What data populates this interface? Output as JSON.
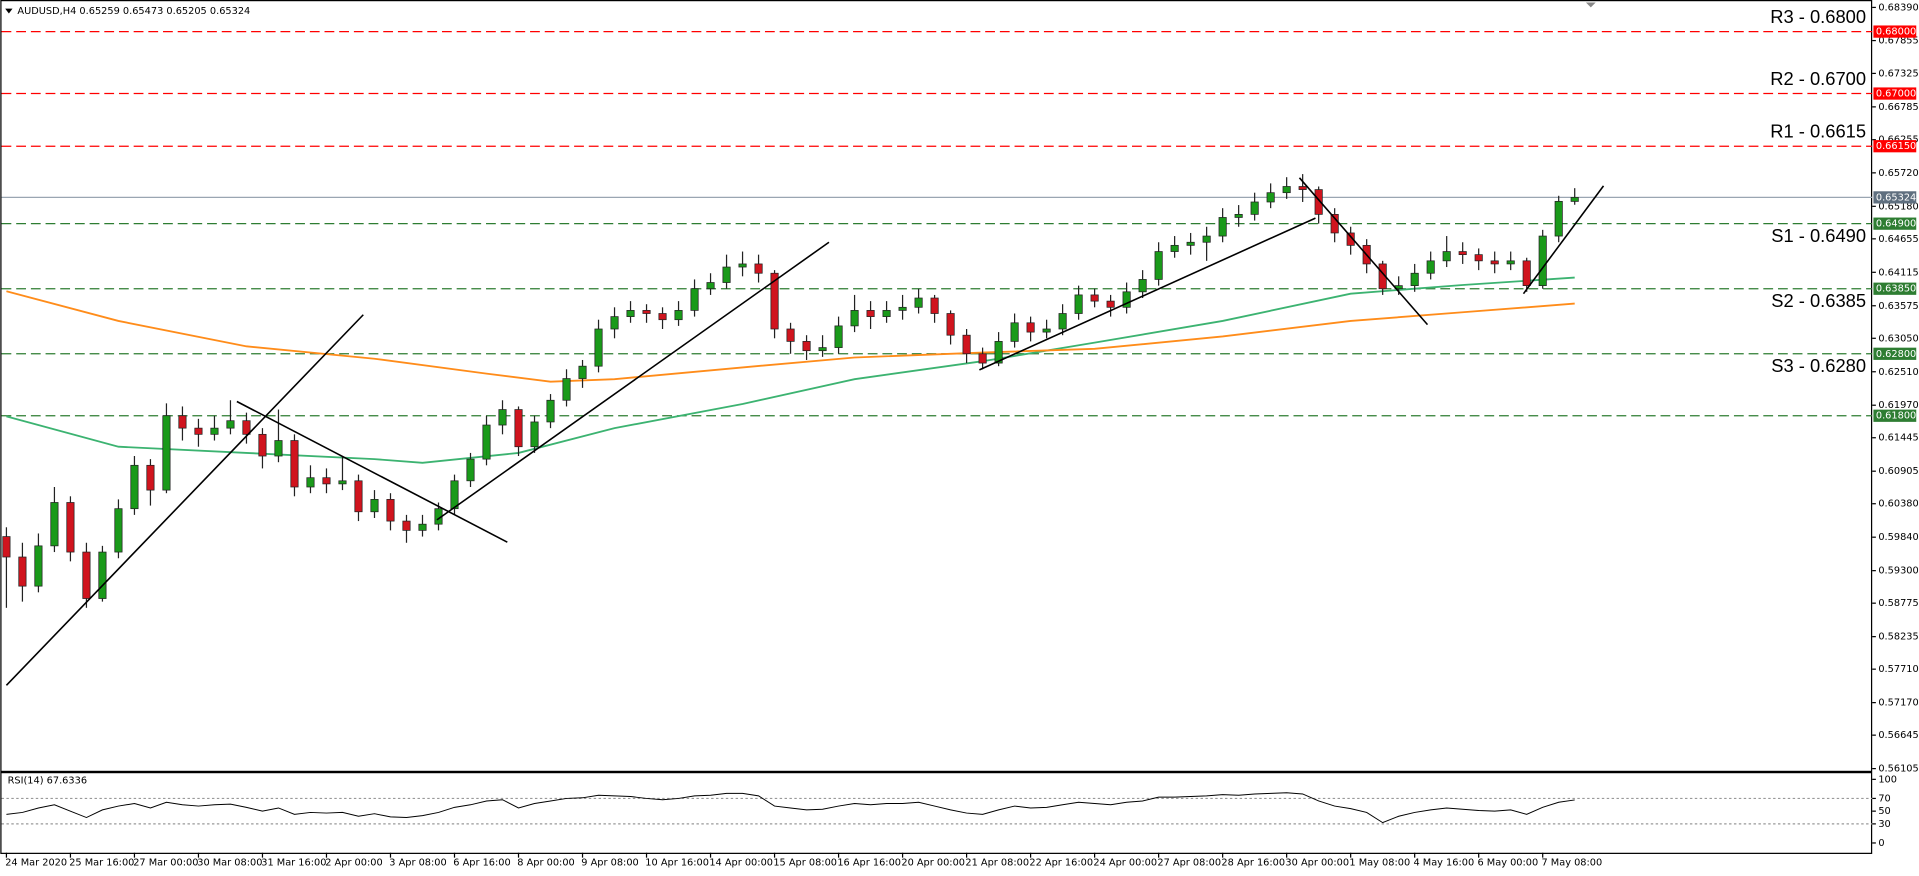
{
  "chart_data": {
    "type": "candlestick",
    "title": "AUDUSD,H4  0.65259 0.65473 0.65205 0.65324",
    "up_color": "#1a9a1a",
    "down_color": "#d0141e",
    "candles": [
      [
        0.5985,
        0.6,
        0.587,
        0.5952
      ],
      [
        0.5952,
        0.5975,
        0.588,
        0.5905
      ],
      [
        0.5905,
        0.599,
        0.5895,
        0.597
      ],
      [
        0.597,
        0.6065,
        0.596,
        0.604
      ],
      [
        0.604,
        0.605,
        0.5945,
        0.596
      ],
      [
        0.596,
        0.5975,
        0.587,
        0.5885
      ],
      [
        0.5885,
        0.597,
        0.588,
        0.596
      ],
      [
        0.596,
        0.6045,
        0.595,
        0.603
      ],
      [
        0.603,
        0.6115,
        0.602,
        0.61
      ],
      [
        0.61,
        0.611,
        0.6035,
        0.606
      ],
      [
        0.606,
        0.62,
        0.6055,
        0.618
      ],
      [
        0.618,
        0.6195,
        0.614,
        0.616
      ],
      [
        0.616,
        0.6175,
        0.613,
        0.615
      ],
      [
        0.615,
        0.618,
        0.614,
        0.616
      ],
      [
        0.616,
        0.6205,
        0.615,
        0.6172
      ],
      [
        0.6172,
        0.6185,
        0.6135,
        0.615
      ],
      [
        0.615,
        0.616,
        0.6095,
        0.6115
      ],
      [
        0.6115,
        0.619,
        0.6105,
        0.614
      ],
      [
        0.614,
        0.615,
        0.605,
        0.6065
      ],
      [
        0.6065,
        0.61,
        0.6055,
        0.608
      ],
      [
        0.608,
        0.6095,
        0.6055,
        0.607
      ],
      [
        0.607,
        0.6115,
        0.606,
        0.6075
      ],
      [
        0.6075,
        0.6085,
        0.601,
        0.6025
      ],
      [
        0.6025,
        0.606,
        0.6015,
        0.6045
      ],
      [
        0.6045,
        0.6055,
        0.5995,
        0.601
      ],
      [
        0.601,
        0.602,
        0.5975,
        0.5995
      ],
      [
        0.5995,
        0.602,
        0.5985,
        0.6005
      ],
      [
        0.6005,
        0.604,
        0.5995,
        0.603
      ],
      [
        0.603,
        0.6085,
        0.602,
        0.6075
      ],
      [
        0.6075,
        0.612,
        0.6065,
        0.611
      ],
      [
        0.611,
        0.618,
        0.61,
        0.6165
      ],
      [
        0.6165,
        0.6205,
        0.615,
        0.619
      ],
      [
        0.619,
        0.6195,
        0.6115,
        0.613
      ],
      [
        0.613,
        0.618,
        0.612,
        0.617
      ],
      [
        0.617,
        0.6215,
        0.616,
        0.6205
      ],
      [
        0.6205,
        0.6255,
        0.6195,
        0.624
      ],
      [
        0.624,
        0.627,
        0.6225,
        0.626
      ],
      [
        0.626,
        0.6335,
        0.625,
        0.632
      ],
      [
        0.632,
        0.6355,
        0.6305,
        0.634
      ],
      [
        0.634,
        0.6365,
        0.633,
        0.635
      ],
      [
        0.635,
        0.636,
        0.633,
        0.6345
      ],
      [
        0.6345,
        0.6355,
        0.632,
        0.6335
      ],
      [
        0.6335,
        0.6365,
        0.6325,
        0.635
      ],
      [
        0.635,
        0.64,
        0.634,
        0.6385
      ],
      [
        0.6385,
        0.641,
        0.6375,
        0.6395
      ],
      [
        0.6395,
        0.644,
        0.6385,
        0.642
      ],
      [
        0.642,
        0.6445,
        0.6405,
        0.6425
      ],
      [
        0.6425,
        0.644,
        0.6395,
        0.641
      ],
      [
        0.641,
        0.6415,
        0.6305,
        0.632
      ],
      [
        0.632,
        0.633,
        0.628,
        0.63
      ],
      [
        0.63,
        0.631,
        0.627,
        0.6285
      ],
      [
        0.6285,
        0.631,
        0.6275,
        0.629
      ],
      [
        0.629,
        0.634,
        0.628,
        0.6325
      ],
      [
        0.6325,
        0.6375,
        0.6315,
        0.635
      ],
      [
        0.635,
        0.6365,
        0.632,
        0.634
      ],
      [
        0.634,
        0.6365,
        0.633,
        0.635
      ],
      [
        0.635,
        0.6375,
        0.6335,
        0.6355
      ],
      [
        0.6355,
        0.6385,
        0.6345,
        0.637
      ],
      [
        0.637,
        0.6375,
        0.633,
        0.6345
      ],
      [
        0.6345,
        0.635,
        0.6295,
        0.631
      ],
      [
        0.631,
        0.632,
        0.6265,
        0.628
      ],
      [
        0.628,
        0.629,
        0.6255,
        0.6265
      ],
      [
        0.6265,
        0.6315,
        0.626,
        0.63
      ],
      [
        0.63,
        0.6345,
        0.629,
        0.633
      ],
      [
        0.633,
        0.634,
        0.63,
        0.6315
      ],
      [
        0.6315,
        0.6335,
        0.6305,
        0.632
      ],
      [
        0.632,
        0.636,
        0.631,
        0.6345
      ],
      [
        0.6345,
        0.639,
        0.6335,
        0.6375
      ],
      [
        0.6375,
        0.6385,
        0.6355,
        0.6365
      ],
      [
        0.6365,
        0.6375,
        0.634,
        0.6355
      ],
      [
        0.6355,
        0.6395,
        0.6345,
        0.638
      ],
      [
        0.638,
        0.6415,
        0.637,
        0.64
      ],
      [
        0.64,
        0.646,
        0.639,
        0.6445
      ],
      [
        0.6445,
        0.647,
        0.6435,
        0.6455
      ],
      [
        0.6455,
        0.6475,
        0.644,
        0.646
      ],
      [
        0.646,
        0.6485,
        0.643,
        0.647
      ],
      [
        0.647,
        0.6515,
        0.646,
        0.65
      ],
      [
        0.65,
        0.652,
        0.6485,
        0.6505
      ],
      [
        0.6505,
        0.654,
        0.6495,
        0.6525
      ],
      [
        0.6525,
        0.6555,
        0.6515,
        0.654
      ],
      [
        0.654,
        0.6565,
        0.653,
        0.655
      ],
      [
        0.655,
        0.657,
        0.6525,
        0.6545
      ],
      [
        0.6545,
        0.655,
        0.649,
        0.6505
      ],
      [
        0.6505,
        0.6515,
        0.646,
        0.6475
      ],
      [
        0.6475,
        0.6485,
        0.644,
        0.6455
      ],
      [
        0.6455,
        0.6465,
        0.641,
        0.6425
      ],
      [
        0.6425,
        0.643,
        0.6375,
        0.6385
      ],
      [
        0.6385,
        0.6405,
        0.6375,
        0.639
      ],
      [
        0.639,
        0.6425,
        0.638,
        0.641
      ],
      [
        0.641,
        0.6445,
        0.64,
        0.643
      ],
      [
        0.643,
        0.647,
        0.642,
        0.6445
      ],
      [
        0.6445,
        0.646,
        0.6425,
        0.644
      ],
      [
        0.644,
        0.645,
        0.6415,
        0.643
      ],
      [
        0.643,
        0.6445,
        0.641,
        0.6425
      ],
      [
        0.6425,
        0.6445,
        0.6415,
        0.643
      ],
      [
        0.643,
        0.6435,
        0.638,
        0.639
      ],
      [
        0.639,
        0.648,
        0.6385,
        0.647
      ],
      [
        0.647,
        0.6535,
        0.646,
        0.6526
      ],
      [
        0.65259,
        0.65473,
        0.65205,
        0.65324
      ]
    ],
    "ylim": [
      0.5607,
      0.6849
    ],
    "yticks": [
      {
        "value": 0.6839,
        "label": "0.68390"
      },
      {
        "value": 0.67855,
        "label": "0.67855"
      },
      {
        "value": 0.67325,
        "label": "0.67325"
      },
      {
        "value": 0.66785,
        "label": "0.66785"
      },
      {
        "value": 0.66255,
        "label": "0.66255"
      },
      {
        "value": 0.6572,
        "label": "0.65720"
      },
      {
        "value": 0.6518,
        "label": "0.65180"
      },
      {
        "value": 0.64655,
        "label": "0.64655"
      },
      {
        "value": 0.64115,
        "label": "0.64115"
      },
      {
        "value": 0.63575,
        "label": "0.63575"
      },
      {
        "value": 0.6305,
        "label": "0.63050"
      },
      {
        "value": 0.6251,
        "label": "0.62510"
      },
      {
        "value": 0.6197,
        "label": "0.61970"
      },
      {
        "value": 0.61445,
        "label": "0.61445"
      },
      {
        "value": 0.60905,
        "label": "0.60905"
      },
      {
        "value": 0.6038,
        "label": "0.60380"
      },
      {
        "value": 0.5984,
        "label": "0.59840"
      },
      {
        "value": 0.593,
        "label": "0.59300"
      },
      {
        "value": 0.58775,
        "label": "0.58775"
      },
      {
        "value": 0.58235,
        "label": "0.58235"
      },
      {
        "value": 0.5771,
        "label": "0.57710"
      },
      {
        "value": 0.5717,
        "label": "0.57170"
      },
      {
        "value": 0.56645,
        "label": "0.56645"
      },
      {
        "value": 0.56105,
        "label": "0.56105"
      }
    ],
    "xticks": [
      {
        "value": 0,
        "label": "24 Mar 2020"
      },
      {
        "value": 4,
        "label": "25 Mar 16:00"
      },
      {
        "value": 8,
        "label": "27 Mar 00:00"
      },
      {
        "value": 12,
        "label": "30 Mar 08:00"
      },
      {
        "value": 16,
        "label": "31 Mar 16:00"
      },
      {
        "value": 20,
        "label": "2 Apr 00:00"
      },
      {
        "value": 24,
        "label": "3 Apr 08:00"
      },
      {
        "value": 28,
        "label": "6 Apr 16:00"
      },
      {
        "value": 32,
        "label": "8 Apr 00:00"
      },
      {
        "value": 36,
        "label": "9 Apr 08:00"
      },
      {
        "value": 40,
        "label": "10 Apr 16:00"
      },
      {
        "value": 44,
        "label": "14 Apr 00:00"
      },
      {
        "value": 48,
        "label": "15 Apr 08:00"
      },
      {
        "value": 52,
        "label": "16 Apr 16:00"
      },
      {
        "value": 56,
        "label": "20 Apr 00:00"
      },
      {
        "value": 60,
        "label": "21 Apr 08:00"
      },
      {
        "value": 64,
        "label": "22 Apr 16:00"
      },
      {
        "value": 68,
        "label": "24 Apr 00:00"
      },
      {
        "value": 72,
        "label": "27 Apr 08:00"
      },
      {
        "value": 76,
        "label": "28 Apr 16:00"
      },
      {
        "value": 80,
        "label": "30 Apr 00:00"
      },
      {
        "value": 84,
        "label": "1 May 08:00"
      },
      {
        "value": 88,
        "label": "4 May 16:00"
      },
      {
        "value": 92,
        "label": "6 May 00:00"
      },
      {
        "value": 96,
        "label": "7 May 08:00"
      }
    ],
    "moving_averages": [
      {
        "color": "#3cb371",
        "x": [
          0,
          7,
          15,
          23,
          26,
          32,
          38,
          46,
          53,
          61,
          68,
          76,
          84,
          91,
          98
        ],
        "values": [
          0.6179,
          0.613,
          0.612,
          0.611,
          0.6104,
          0.612,
          0.616,
          0.6199,
          0.6239,
          0.6268,
          0.6298,
          0.6333,
          0.6377,
          0.6391,
          0.6403
        ]
      },
      {
        "color": "#ff8c1a",
        "x": [
          0,
          7,
          15,
          23,
          30,
          34,
          38,
          46,
          53,
          61,
          68,
          76,
          84,
          91,
          98
        ],
        "values": [
          0.6381,
          0.6333,
          0.6292,
          0.6272,
          0.6248,
          0.6235,
          0.6239,
          0.6258,
          0.6274,
          0.6282,
          0.6288,
          0.6308,
          0.6333,
          0.6347,
          0.6361
        ]
      }
    ],
    "trendlines": [
      {
        "x": [
          0,
          22.3
        ],
        "values": [
          0.5745,
          0.6343
        ]
      },
      {
        "x": [
          14.4,
          31.3
        ],
        "values": [
          0.6203,
          0.5976
        ]
      },
      {
        "x": [
          26.9,
          51.4
        ],
        "values": [
          0.6012,
          0.646
        ]
      },
      {
        "x": [
          60.8,
          81.8
        ],
        "values": [
          0.6254,
          0.6499
        ]
      },
      {
        "x": [
          80.8,
          88.8
        ],
        "values": [
          0.6564,
          0.6327
        ]
      },
      {
        "x": [
          94.8,
          99.8
        ],
        "values": [
          0.6377,
          0.6551
        ]
      }
    ],
    "current_price": {
      "value": 0.65324,
      "value_label": "0.65324",
      "color": "#9aa6b2"
    },
    "levels": [
      {
        "label": "R3 - 0.6800",
        "value": 0.68,
        "value_label": "0.68000",
        "color": "#ff0000"
      },
      {
        "label": "R2 - 0.6700",
        "value": 0.67,
        "value_label": "0.67000",
        "color": "#ff0000"
      },
      {
        "label": "R1 - 0.6615",
        "value": 0.6615,
        "value_label": "0.66150",
        "color": "#ff0000"
      },
      {
        "label": "S1 - 0.6490",
        "value": 0.649,
        "value_label": "0.64900",
        "color": "#2e7d32"
      },
      {
        "label": "S2 - 0.6385",
        "value": 0.6385,
        "value_label": "0.63850",
        "color": "#2e7d32"
      },
      {
        "label": "S3 - 0.6280",
        "value": 0.628,
        "value_label": "0.62800",
        "color": "#2e7d32"
      },
      {
        "value": 0.618,
        "value_label": "0.61800",
        "color": "#2e7d32"
      }
    ],
    "rsi": {
      "title": "RSI(14) 67.6336",
      "ylim": [
        0,
        100
      ],
      "yticks": [
        100,
        70,
        50,
        30,
        0
      ],
      "guides": [
        70,
        30
      ],
      "values": [
        45,
        48,
        55,
        60,
        50,
        40,
        52,
        58,
        62,
        55,
        64,
        60,
        58,
        60,
        61,
        56,
        50,
        55,
        45,
        48,
        47,
        48,
        42,
        46,
        41,
        40,
        43,
        48,
        56,
        60,
        66,
        68,
        55,
        62,
        66,
        70,
        71,
        75,
        74,
        73,
        70,
        68,
        70,
        74,
        75,
        78,
        78,
        74,
        58,
        55,
        52,
        53,
        58,
        62,
        60,
        62,
        62,
        64,
        58,
        52,
        47,
        45,
        52,
        58,
        55,
        56,
        60,
        64,
        62,
        60,
        64,
        66,
        72,
        72,
        73,
        74,
        76,
        75,
        77,
        78,
        79,
        77,
        66,
        58,
        54,
        48,
        32,
        42,
        48,
        52,
        55,
        53,
        51,
        50,
        52,
        45,
        56,
        64,
        67.6336
      ]
    }
  }
}
